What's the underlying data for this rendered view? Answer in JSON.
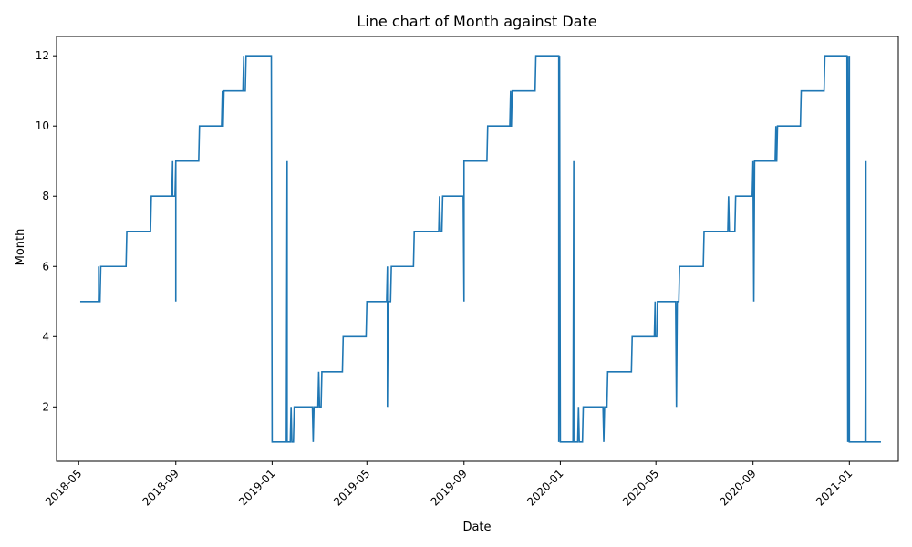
{
  "chart_data": {
    "type": "line",
    "title": "Line chart of Month against Date",
    "xlabel": "Date",
    "ylabel": "Month",
    "x_type": "date",
    "xlim": [
      "2018-04-03",
      "2021-03-04"
    ],
    "ylim": [
      0.45,
      12.55
    ],
    "x_ticks": [
      "2018-05",
      "2018-09",
      "2019-01",
      "2019-05",
      "2019-09",
      "2020-01",
      "2020-05",
      "2020-09",
      "2021-01"
    ],
    "y_ticks": [
      2,
      4,
      6,
      8,
      10,
      12
    ],
    "grid": false,
    "legend": "none",
    "series_color": "#1f77b4",
    "series": [
      {
        "points": [
          [
            "2018-05-03",
            5
          ],
          [
            "2018-05-26",
            5
          ],
          [
            "2018-05-26",
            6
          ],
          [
            "2018-05-26",
            5
          ],
          [
            "2018-05-28",
            5
          ],
          [
            "2018-05-29",
            6
          ],
          [
            "2018-06-30",
            6
          ],
          [
            "2018-07-01",
            7
          ],
          [
            "2018-07-31",
            7
          ],
          [
            "2018-08-01",
            8
          ],
          [
            "2018-08-27",
            8
          ],
          [
            "2018-08-28",
            9
          ],
          [
            "2018-08-28",
            8
          ],
          [
            "2018-08-31",
            8
          ],
          [
            "2018-09-01",
            9
          ],
          [
            "2018-09-01",
            5
          ],
          [
            "2018-09-01",
            9
          ],
          [
            "2018-09-30",
            9
          ],
          [
            "2018-10-01",
            10
          ],
          [
            "2018-10-29",
            10
          ],
          [
            "2018-10-30",
            11
          ],
          [
            "2018-10-30",
            10
          ],
          [
            "2018-10-31",
            10
          ],
          [
            "2018-11-01",
            11
          ],
          [
            "2018-11-25",
            11
          ],
          [
            "2018-11-26",
            12
          ],
          [
            "2018-11-26",
            11
          ],
          [
            "2018-11-28",
            11
          ],
          [
            "2018-11-29",
            12
          ],
          [
            "2018-12-31",
            12
          ],
          [
            "2019-01-01",
            1
          ],
          [
            "2019-01-19",
            1
          ],
          [
            "2019-01-20",
            9
          ],
          [
            "2019-01-20",
            1
          ],
          [
            "2019-01-24",
            1
          ],
          [
            "2019-01-25",
            2
          ],
          [
            "2019-01-26",
            1
          ],
          [
            "2019-01-28",
            1
          ],
          [
            "2019-01-29",
            2
          ],
          [
            "2019-02-21",
            2
          ],
          [
            "2019-02-22",
            1
          ],
          [
            "2019-02-23",
            2
          ],
          [
            "2019-02-28",
            2
          ],
          [
            "2019-03-01",
            3
          ],
          [
            "2019-03-02",
            2
          ],
          [
            "2019-03-04",
            2
          ],
          [
            "2019-03-05",
            3
          ],
          [
            "2019-03-31",
            3
          ],
          [
            "2019-04-01",
            4
          ],
          [
            "2019-04-30",
            4
          ],
          [
            "2019-05-01",
            5
          ],
          [
            "2019-05-26",
            5
          ],
          [
            "2019-05-27",
            6
          ],
          [
            "2019-05-27",
            2
          ],
          [
            "2019-05-28",
            5
          ],
          [
            "2019-05-31",
            5
          ],
          [
            "2019-06-01",
            6
          ],
          [
            "2019-06-29",
            6
          ],
          [
            "2019-06-30",
            7
          ],
          [
            "2019-07-31",
            7
          ],
          [
            "2019-08-01",
            8
          ],
          [
            "2019-08-02",
            7
          ],
          [
            "2019-08-04",
            7
          ],
          [
            "2019-08-05",
            8
          ],
          [
            "2019-08-31",
            8
          ],
          [
            "2019-09-01",
            5
          ],
          [
            "2019-09-01",
            9
          ],
          [
            "2019-09-30",
            9
          ],
          [
            "2019-10-01",
            10
          ],
          [
            "2019-10-29",
            10
          ],
          [
            "2019-10-30",
            11
          ],
          [
            "2019-10-30",
            10
          ],
          [
            "2019-10-31",
            10
          ],
          [
            "2019-11-01",
            11
          ],
          [
            "2019-11-30",
            11
          ],
          [
            "2019-12-01",
            12
          ],
          [
            "2019-12-30",
            12
          ],
          [
            "2019-12-30",
            1
          ],
          [
            "2019-12-31",
            12
          ],
          [
            "2020-01-01",
            1
          ],
          [
            "2020-01-17",
            1
          ],
          [
            "2020-01-18",
            9
          ],
          [
            "2020-01-18",
            1
          ],
          [
            "2020-01-23",
            1
          ],
          [
            "2020-01-24",
            2
          ],
          [
            "2020-01-25",
            1
          ],
          [
            "2020-01-29",
            1
          ],
          [
            "2020-01-30",
            2
          ],
          [
            "2020-02-24",
            2
          ],
          [
            "2020-02-25",
            1
          ],
          [
            "2020-02-26",
            2
          ],
          [
            "2020-02-29",
            2
          ],
          [
            "2020-03-01",
            3
          ],
          [
            "2020-03-31",
            3
          ],
          [
            "2020-04-01",
            4
          ],
          [
            "2020-04-29",
            4
          ],
          [
            "2020-04-30",
            5
          ],
          [
            "2020-04-30",
            4
          ],
          [
            "2020-05-02",
            4
          ],
          [
            "2020-05-03",
            5
          ],
          [
            "2020-05-26",
            5
          ],
          [
            "2020-05-27",
            2
          ],
          [
            "2020-05-28",
            5
          ],
          [
            "2020-05-30",
            5
          ],
          [
            "2020-05-31",
            6
          ],
          [
            "2020-06-30",
            6
          ],
          [
            "2020-07-01",
            7
          ],
          [
            "2020-07-31",
            7
          ],
          [
            "2020-08-01",
            8
          ],
          [
            "2020-08-02",
            7
          ],
          [
            "2020-08-09",
            7
          ],
          [
            "2020-08-10",
            8
          ],
          [
            "2020-08-31",
            8
          ],
          [
            "2020-09-01",
            9
          ],
          [
            "2020-09-02",
            5
          ],
          [
            "2020-09-03",
            9
          ],
          [
            "2020-09-29",
            9
          ],
          [
            "2020-09-30",
            10
          ],
          [
            "2020-09-30",
            9
          ],
          [
            "2020-10-01",
            9
          ],
          [
            "2020-10-02",
            10
          ],
          [
            "2020-10-31",
            10
          ],
          [
            "2020-11-01",
            11
          ],
          [
            "2020-11-30",
            11
          ],
          [
            "2020-12-01",
            12
          ],
          [
            "2020-12-29",
            12
          ],
          [
            "2020-12-30",
            1
          ],
          [
            "2020-12-30",
            12
          ],
          [
            "2020-12-31",
            1
          ],
          [
            "2021-01-01",
            12
          ],
          [
            "2021-01-01",
            1
          ],
          [
            "2021-01-21",
            1
          ],
          [
            "2021-01-22",
            9
          ],
          [
            "2021-01-22",
            1
          ],
          [
            "2021-02-10",
            1
          ]
        ]
      }
    ]
  }
}
